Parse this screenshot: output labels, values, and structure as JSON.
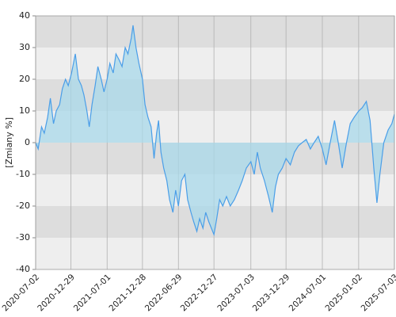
{
  "chart_data": {
    "type": "area",
    "y_label": "[Zmiany %]",
    "color": "#4a9ee8",
    "fill_color": "#a8d8ea",
    "grid": true,
    "ylim": [
      -40,
      40
    ],
    "yticks": [
      -40,
      -30,
      -20,
      -10,
      0,
      10,
      20,
      30,
      40
    ],
    "xlim": [
      "2020-07-02",
      "2025-07-03"
    ],
    "xticks": [
      "2020-07-02",
      "2020-12-29",
      "2021-07-01",
      "2021-12-28",
      "2022-06-29",
      "2022-12-27",
      "2023-07-03",
      "2023-12-29",
      "2024-07-01",
      "2025-01-02",
      "2025-07-03"
    ],
    "x": [
      "2020-07-02",
      "2020-07-15",
      "2020-08-01",
      "2020-08-15",
      "2020-09-01",
      "2020-09-15",
      "2020-10-01",
      "2020-10-15",
      "2020-11-01",
      "2020-11-15",
      "2020-12-01",
      "2020-12-15",
      "2021-01-01",
      "2021-01-20",
      "2021-02-05",
      "2021-02-20",
      "2021-03-05",
      "2021-03-20",
      "2021-04-01",
      "2021-04-15",
      "2021-05-01",
      "2021-05-15",
      "2021-06-01",
      "2021-06-15",
      "2021-07-01",
      "2021-07-15",
      "2021-08-01",
      "2021-08-15",
      "2021-09-01",
      "2021-09-15",
      "2021-10-01",
      "2021-10-15",
      "2021-11-01",
      "2021-11-10",
      "2021-11-25",
      "2021-12-10",
      "2021-12-28",
      "2022-01-10",
      "2022-01-25",
      "2022-02-10",
      "2022-02-25",
      "2022-03-10",
      "2022-03-20",
      "2022-04-01",
      "2022-04-15",
      "2022-05-01",
      "2022-05-15",
      "2022-06-01",
      "2022-06-15",
      "2022-06-29",
      "2022-07-15",
      "2022-08-01",
      "2022-08-15",
      "2022-09-01",
      "2022-09-15",
      "2022-10-01",
      "2022-10-15",
      "2022-11-01",
      "2022-11-15",
      "2022-12-01",
      "2022-12-27",
      "2023-01-10",
      "2023-01-25",
      "2023-02-10",
      "2023-03-01",
      "2023-03-20",
      "2023-04-10",
      "2023-05-01",
      "2023-05-20",
      "2023-06-10",
      "2023-07-03",
      "2023-07-20",
      "2023-08-05",
      "2023-08-20",
      "2023-09-10",
      "2023-10-01",
      "2023-10-20",
      "2023-11-05",
      "2023-11-20",
      "2023-12-10",
      "2023-12-29",
      "2024-01-20",
      "2024-02-10",
      "2024-03-01",
      "2024-03-20",
      "2024-04-10",
      "2024-05-01",
      "2024-05-20",
      "2024-06-10",
      "2024-07-01",
      "2024-07-20",
      "2024-08-10",
      "2024-09-01",
      "2024-09-20",
      "2024-10-10",
      "2024-11-01",
      "2024-11-20",
      "2024-12-10",
      "2025-01-02",
      "2025-01-20",
      "2025-02-10",
      "2025-03-01",
      "2025-03-20",
      "2025-04-05",
      "2025-04-20",
      "2025-05-10",
      "2025-06-01",
      "2025-06-20",
      "2025-07-03"
    ],
    "values": [
      0,
      -2,
      5,
      3,
      8,
      14,
      6,
      10,
      12,
      17,
      20,
      18,
      22,
      28,
      20,
      18,
      15,
      10,
      5,
      12,
      18,
      24,
      20,
      16,
      20,
      25,
      22,
      28,
      26,
      24,
      30,
      28,
      33,
      37,
      30,
      25,
      20,
      12,
      8,
      5,
      -5,
      3,
      7,
      -3,
      -8,
      -12,
      -18,
      -22,
      -15,
      -20,
      -12,
      -10,
      -18,
      -22,
      -25,
      -28,
      -24,
      -27,
      -22,
      -25,
      -29,
      -24,
      -18,
      -20,
      -17,
      -20,
      -18,
      -15,
      -12,
      -8,
      -6,
      -10,
      -3,
      -8,
      -12,
      -17,
      -22,
      -14,
      -10,
      -8,
      -5,
      -7,
      -3,
      -1,
      0,
      1,
      -2,
      0,
      2,
      -2,
      -7,
      0,
      7,
      0,
      -8,
      0,
      6,
      8,
      10,
      11,
      13,
      7,
      -8,
      -19,
      -10,
      0,
      4,
      6,
      9
    ]
  }
}
